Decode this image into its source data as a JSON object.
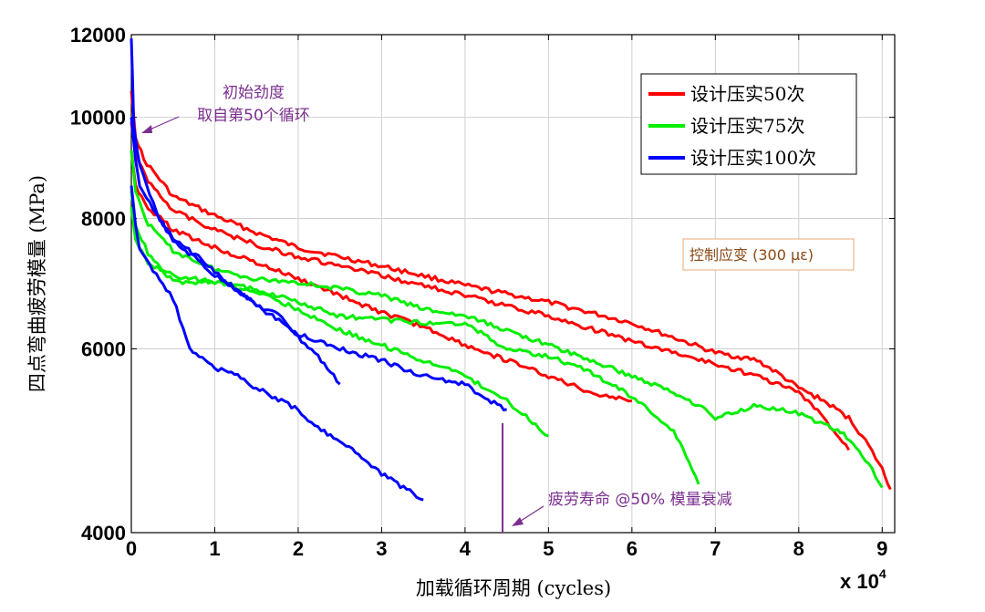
{
  "chart_data": {
    "type": "line",
    "title": "",
    "xlabel": "加载循环周期 (cycles)",
    "ylabel": "四点弯曲疲劳模量 (MPa)",
    "x_multiplier_label": "x 10",
    "x_multiplier_exp": "4",
    "xlim": [
      0,
      91500
    ],
    "ylim": [
      4000,
      12000
    ],
    "yscale": "log",
    "x_ticks": [
      0,
      10000,
      20000,
      30000,
      40000,
      50000,
      60000,
      70000,
      80000,
      90000
    ],
    "x_tick_labels": [
      "0",
      "1",
      "2",
      "3",
      "4",
      "5",
      "6",
      "7",
      "8",
      "9"
    ],
    "y_ticks": [
      4000,
      6000,
      8000,
      10000,
      12000
    ],
    "y_tick_labels": [
      "4000",
      "6000",
      "8000",
      "10000",
      "12000"
    ],
    "grid": true,
    "legend_position": "top-right",
    "legend": [
      {
        "label": "设计压实50次",
        "color": "#ff0000"
      },
      {
        "label": "设计压实75次",
        "color": "#00ee00"
      },
      {
        "label": "设计压实100次",
        "color": "#0000ff"
      }
    ],
    "series": [
      {
        "group": 0,
        "color": "#ff0000",
        "x": [
          0,
          500,
          1500,
          5000,
          10000,
          15000,
          20000,
          30000,
          40000,
          50000,
          60000,
          70000,
          75000,
          78000,
          80000,
          83000,
          86000,
          88000,
          90000,
          91000
        ],
        "y": [
          10600,
          9600,
          9100,
          8400,
          8050,
          7750,
          7500,
          7200,
          6900,
          6650,
          6350,
          5950,
          5850,
          5650,
          5500,
          5350,
          5150,
          4900,
          4600,
          4400
        ]
      },
      {
        "group": 0,
        "color": "#ff0000",
        "x": [
          0,
          500,
          2000,
          5000,
          10000,
          15000,
          20000,
          30000,
          40000,
          50000,
          60000,
          70000,
          75000,
          80000,
          83000,
          86000
        ],
        "y": [
          9900,
          9200,
          8700,
          8150,
          7800,
          7550,
          7350,
          7050,
          6750,
          6450,
          6100,
          5800,
          5650,
          5450,
          5150,
          4800
        ]
      },
      {
        "group": 0,
        "color": "#ff0000",
        "x": [
          0,
          500,
          2000,
          5000,
          10000,
          15000,
          20000,
          25000,
          30000,
          35000,
          40000,
          45000,
          50000,
          55000,
          60000
        ],
        "y": [
          9300,
          8600,
          8200,
          7800,
          7500,
          7250,
          7000,
          6750,
          6500,
          6300,
          6050,
          5850,
          5650,
          5450,
          5350
        ]
      },
      {
        "group": 1,
        "color": "#00ee00",
        "x": [
          0,
          500,
          2000,
          5000,
          10000,
          15000,
          20000,
          25000,
          30000,
          35000,
          40000,
          45000,
          50000,
          55000,
          60000,
          65000,
          68000,
          70000,
          75000,
          80000,
          85000,
          88000,
          90000
        ],
        "y": [
          9300,
          8500,
          7900,
          7450,
          7150,
          7000,
          6950,
          6850,
          6750,
          6550,
          6450,
          6250,
          6050,
          5850,
          5650,
          5450,
          5300,
          5150,
          5300,
          5200,
          5000,
          4700,
          4420
        ]
      },
      {
        "group": 1,
        "color": "#00ee00",
        "x": [
          0,
          500,
          2000,
          5000,
          10000,
          15000,
          20000,
          25000,
          30000,
          35000,
          40000,
          45000,
          50000,
          55000,
          60000,
          65000,
          68000
        ],
        "y": [
          8500,
          7900,
          7400,
          6950,
          6950,
          6850,
          6650,
          6450,
          6400,
          6350,
          6350,
          6000,
          5900,
          5700,
          5400,
          5000,
          4450
        ]
      },
      {
        "group": 1,
        "color": "#00ee00",
        "x": [
          0,
          500,
          2000,
          5000,
          10000,
          15000,
          20000,
          25000,
          30000,
          35000,
          40000,
          45000,
          50000
        ],
        "y": [
          8200,
          7600,
          7250,
          7050,
          6950,
          6800,
          6550,
          6250,
          6050,
          5850,
          5650,
          5350,
          4950
        ]
      },
      {
        "group": 2,
        "color": "#0000ff",
        "x": [
          0,
          300,
          1000,
          3000,
          5000,
          8000,
          10000,
          12000,
          15000,
          18000,
          20000,
          22000,
          25000
        ],
        "y": [
          11900,
          9800,
          9000,
          8100,
          7600,
          7300,
          7050,
          6900,
          6600,
          6450,
          6150,
          5950,
          5550
        ]
      },
      {
        "group": 2,
        "color": "#0000ff",
        "x": [
          0,
          500,
          1000,
          3000,
          5000,
          8000,
          10000,
          15000,
          20000,
          25000,
          30000,
          35000,
          40000,
          42000,
          45000
        ],
        "y": [
          10000,
          9100,
          8600,
          8050,
          7650,
          7350,
          7100,
          6600,
          6200,
          6000,
          5850,
          5650,
          5550,
          5400,
          5250
        ]
      },
      {
        "group": 2,
        "color": "#0000ff",
        "x": [
          0,
          500,
          1000,
          3000,
          5000,
          7000,
          10000,
          12000,
          15000,
          18000,
          20000,
          22000,
          25000,
          28000,
          30000,
          33000,
          35000
        ],
        "y": [
          8600,
          7900,
          7500,
          7050,
          6700,
          6000,
          5750,
          5700,
          5500,
          5350,
          5250,
          5050,
          4900,
          4700,
          4550,
          4400,
          4300
        ]
      }
    ],
    "annotations": [
      {
        "lines": [
          "初始劲度",
          "取自第50个循环"
        ],
        "color": "#7b2f8f"
      },
      {
        "text": "疲劳寿命 @50% 模量衰减",
        "color": "#7b2f8f",
        "marker_x": 44500
      },
      {
        "text": "控制应变 (300 με)",
        "color": "#8a4a16"
      }
    ]
  }
}
